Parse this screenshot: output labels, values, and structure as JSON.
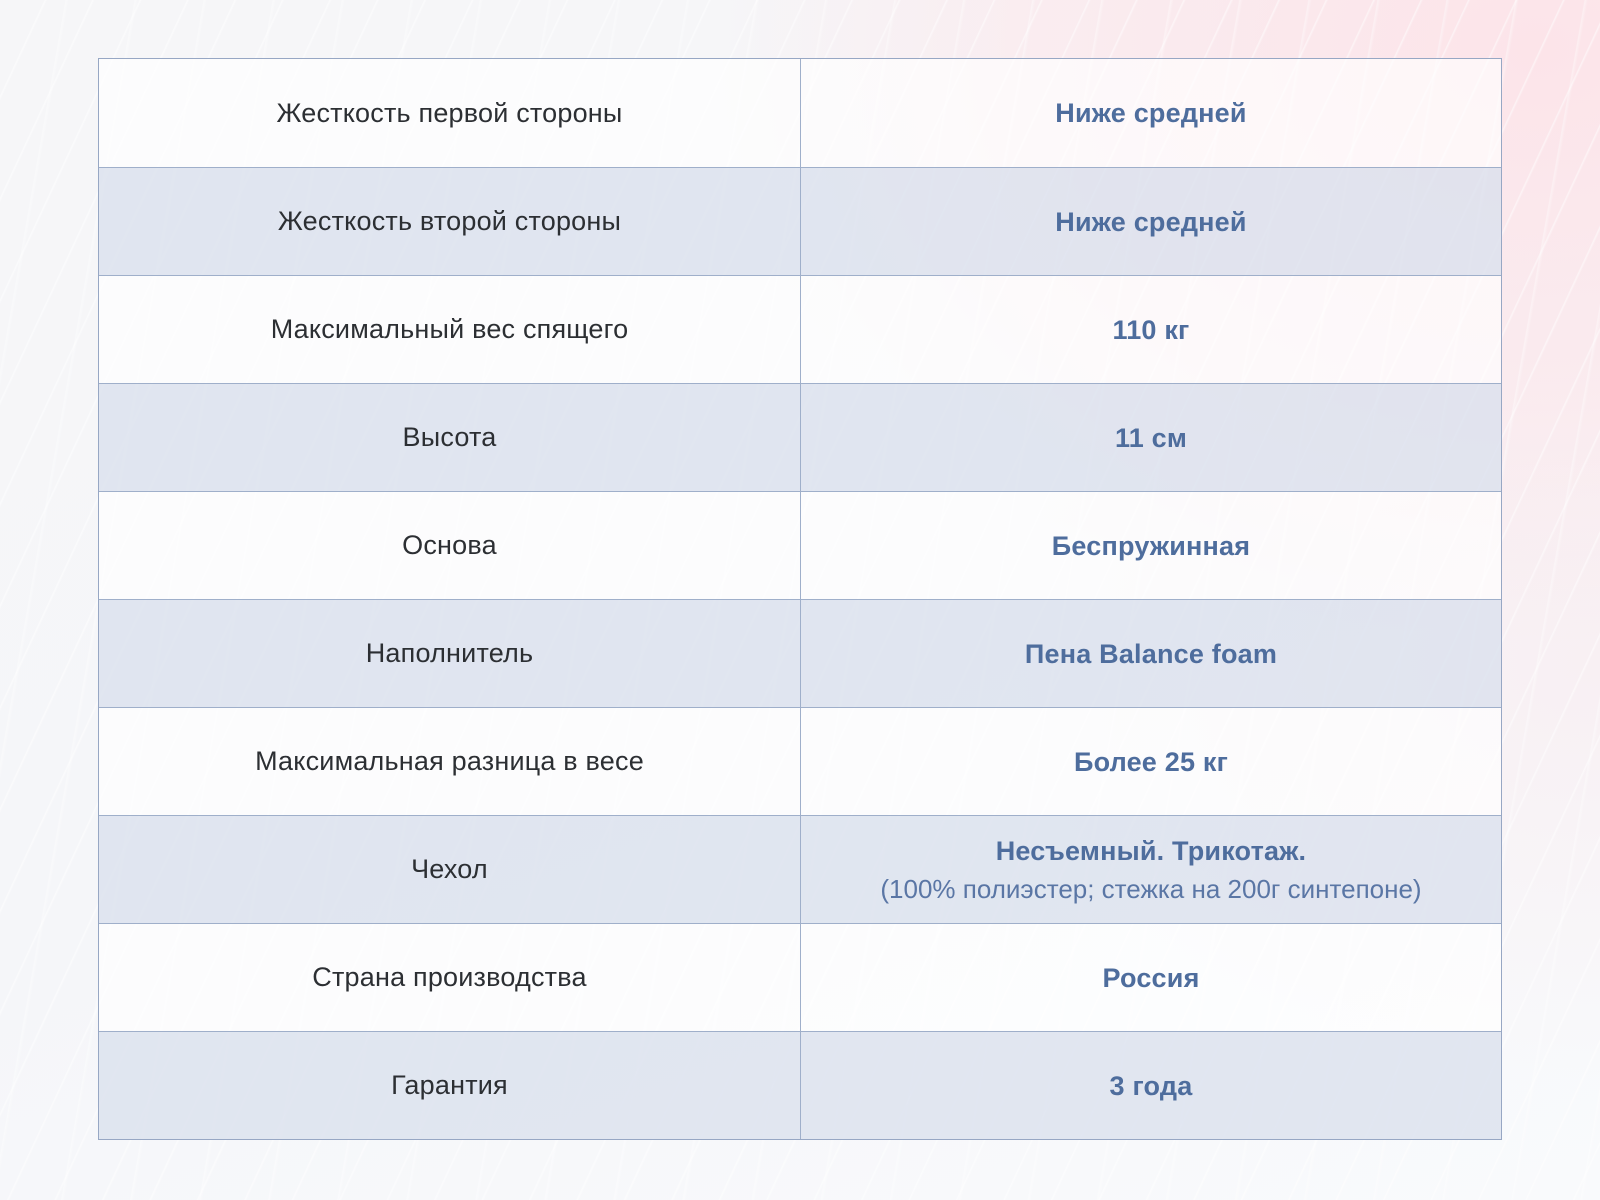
{
  "colors": {
    "value_accent": "#4e6d9d",
    "label_text": "#2c2f33",
    "border": "#9fafca",
    "stripe_even": "#dbe1ee",
    "background_pink": "#fce4e9",
    "background_base": "#f6f6f8"
  },
  "table": {
    "rows": [
      {
        "label": "Жесткость первой стороны",
        "value": "Ниже средней"
      },
      {
        "label": "Жесткость второй стороны",
        "value": "Ниже средней"
      },
      {
        "label": "Максимальный вес спящего",
        "value": "110 кг"
      },
      {
        "label": "Высота",
        "value": "11 см"
      },
      {
        "label": "Основа",
        "value": "Беспружинная"
      },
      {
        "label": "Наполнитель",
        "value": "Пена Balance foam"
      },
      {
        "label": "Максимальная разница в весе",
        "value": "Более 25 кг"
      },
      {
        "label": "Чехол",
        "value": "Несъемный. Трикотаж.",
        "value_line2": "(100% полиэстер; стежка на 200г синтепоне)"
      },
      {
        "label": "Страна производства",
        "value": "Россия"
      },
      {
        "label": "Гарантия",
        "value": "3 года"
      }
    ]
  }
}
